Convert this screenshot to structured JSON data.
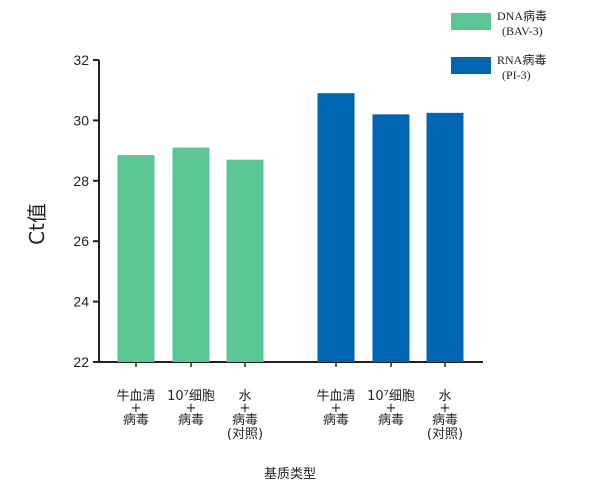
{
  "chart_data": {
    "type": "bar",
    "ylabel": "Ct值",
    "xlabel": "基质类型",
    "ylim": [
      22,
      32
    ],
    "yticks": [
      "22",
      "24",
      "26",
      "28",
      "30",
      "32"
    ],
    "categories": [
      [
        "牛血清",
        "+",
        "病毒"
      ],
      [
        "10⁷细胞",
        "+",
        "病毒"
      ],
      [
        "水",
        "+",
        "病毒",
        "(对照)"
      ]
    ],
    "series": [
      {
        "name": "DNA病毒",
        "name_sub": "(BAV-3)",
        "color": "#5bc694",
        "values": [
          28.85,
          29.1,
          28.7
        ]
      },
      {
        "name": "RNA病毒",
        "name_sub": "(PI-3)",
        "color": "#0066b3",
        "values": [
          30.9,
          30.2,
          30.25
        ]
      }
    ],
    "grid": false,
    "legend": "top-right"
  }
}
